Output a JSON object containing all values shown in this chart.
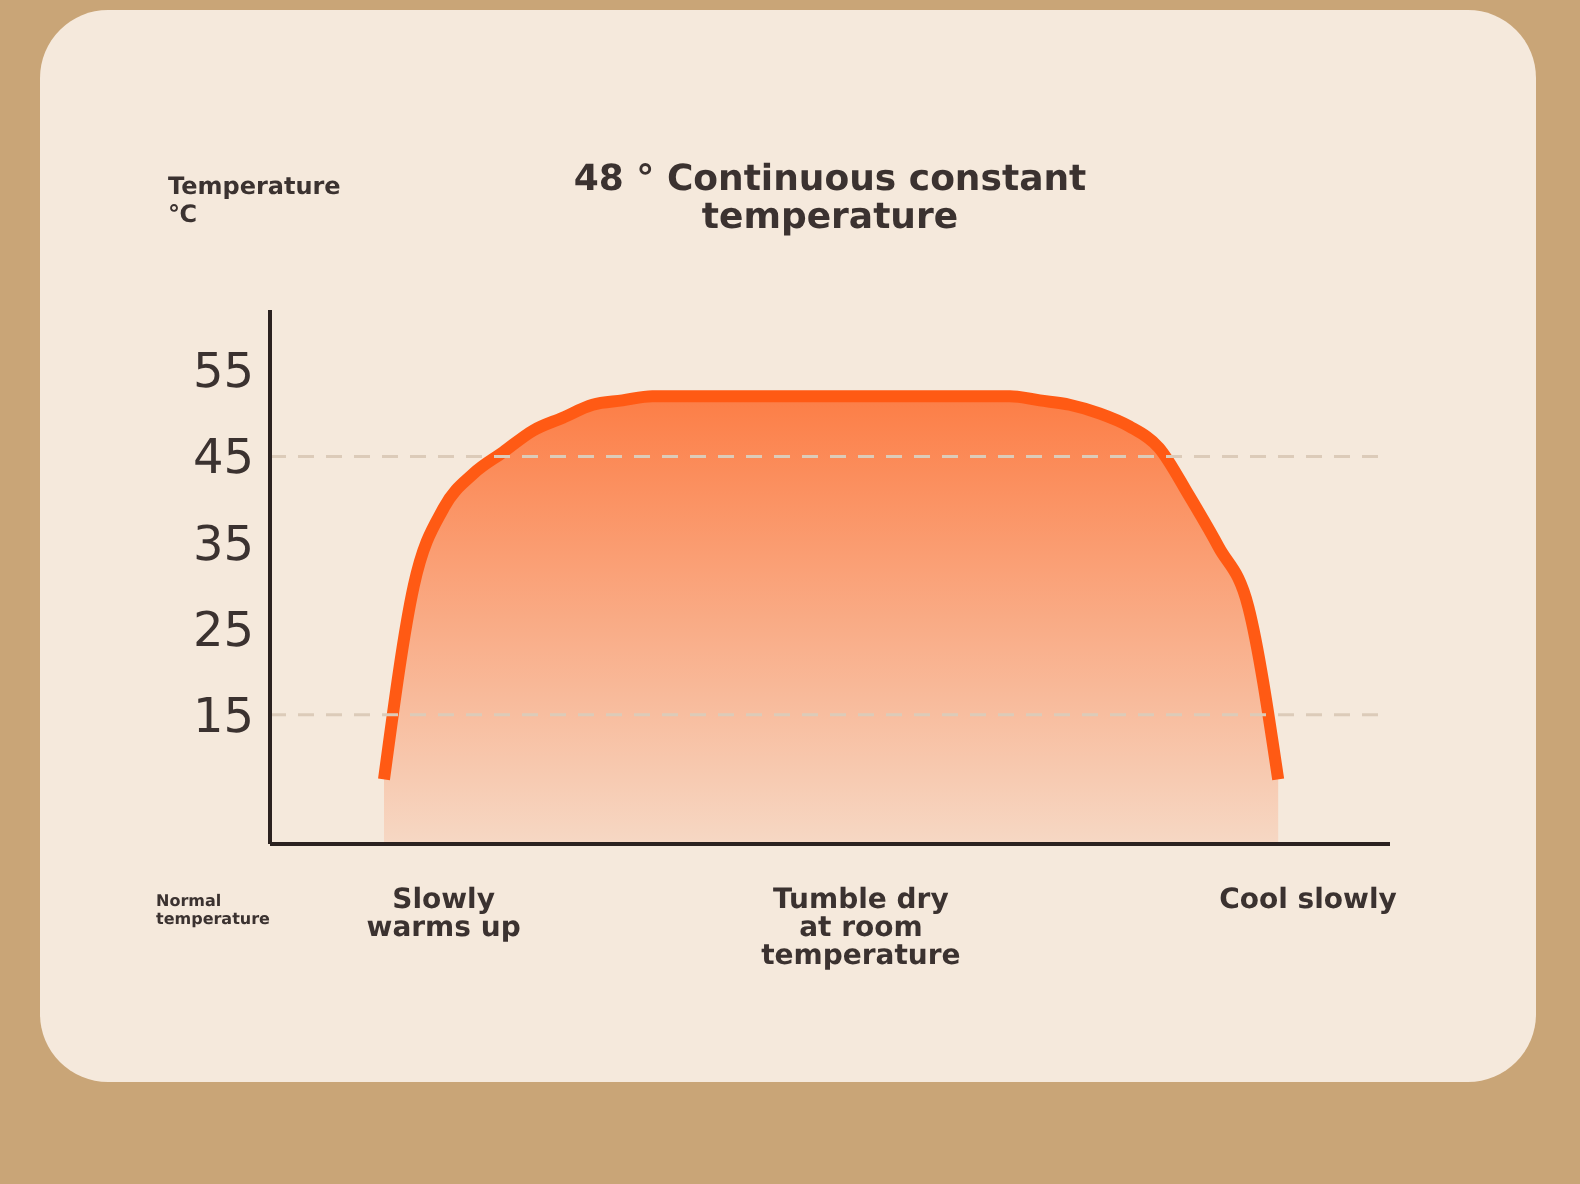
{
  "chart_data": {
    "type": "area",
    "title": "48 ° Continuous constant temperature",
    "ylabel": "Temperature ℃",
    "categories": [
      null,
      null,
      "Slowly warms up",
      null,
      null,
      null,
      null,
      null,
      null,
      null,
      null,
      null,
      null,
      null,
      null,
      null,
      "Tumble dry at room temperature",
      null,
      null,
      null,
      null,
      null,
      null,
      null,
      null,
      null,
      null,
      null,
      null,
      null,
      null,
      "Cool slowly"
    ],
    "series": [
      {
        "color": "#ff5a14",
        "values": [
          7.5,
          30,
          39,
          43,
          45.5,
          48,
          49.5,
          51,
          51.5,
          52,
          52,
          52,
          52,
          52,
          52,
          52,
          52,
          52,
          52,
          52,
          52,
          52,
          51.5,
          51,
          50,
          48.5,
          46,
          40.5,
          34.5,
          27.5,
          7.5,
          null
        ]
      }
    ],
    "ylim": [
      0,
      62
    ],
    "yticks": [
      15,
      25,
      35,
      45,
      55
    ],
    "grid": false,
    "legend": false,
    "ref_lines": [
      {
        "axis": "y",
        "value": 45,
        "color": "#dccbb9",
        "line_style": "dashed"
      },
      {
        "axis": "y",
        "value": 15,
        "color": "#dccbb9",
        "line_style": "dashed"
      }
    ],
    "annotations": [
      "Normal temperature"
    ]
  }
}
